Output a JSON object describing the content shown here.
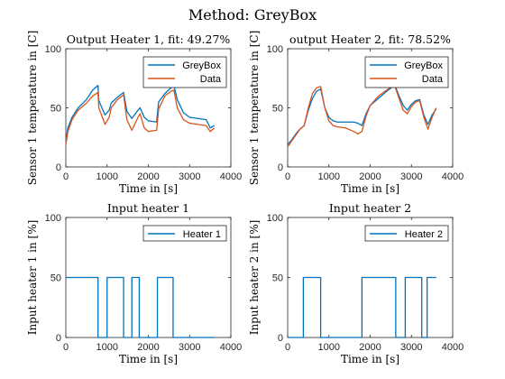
{
  "figure_title": "Method: GreyBox",
  "colors": {
    "greybox": "#0072BD",
    "data": "#D95319",
    "heater": "#0072BD",
    "axis": "#262626"
  },
  "chart_data": [
    {
      "type": "line",
      "title": "Output Heater 1, fit: 49.27%",
      "xlabel": "Time in [s]",
      "ylabel": "Sensor 1 temperature in [C]",
      "xlim": [
        0,
        4000
      ],
      "ylim": [
        0,
        100
      ],
      "xticks": [
        "0",
        "1000",
        "2000",
        "3000",
        "4000"
      ],
      "yticks": [
        "0",
        "50",
        "100"
      ],
      "legend_position": "top-right",
      "series": [
        {
          "name": "GreyBox",
          "color": "#0072BD",
          "x": [
            0,
            50,
            150,
            300,
            500,
            650,
            780,
            800,
            950,
            1050,
            1100,
            1250,
            1400,
            1480,
            1600,
            1750,
            1800,
            1900,
            2000,
            2200,
            2250,
            2400,
            2550,
            2620,
            2700,
            2850,
            3000,
            3200,
            3400,
            3500,
            3600
          ],
          "y": [
            22,
            33,
            42,
            50,
            57,
            65,
            69,
            56,
            44,
            48,
            54,
            59,
            63,
            47,
            41,
            48,
            50,
            42,
            39,
            38,
            55,
            62,
            67,
            69,
            57,
            46,
            42,
            41,
            40,
            33,
            35
          ]
        },
        {
          "name": "Data",
          "color": "#D95319",
          "x": [
            0,
            50,
            150,
            300,
            500,
            650,
            780,
            800,
            950,
            1050,
            1100,
            1250,
            1400,
            1480,
            1600,
            1750,
            1800,
            1900,
            2000,
            2200,
            2250,
            2400,
            2550,
            2620,
            2700,
            2850,
            3000,
            3200,
            3400,
            3500,
            3600
          ],
          "y": [
            19,
            30,
            40,
            48,
            54,
            60,
            63,
            50,
            36,
            42,
            50,
            57,
            61,
            40,
            31,
            42,
            45,
            33,
            30,
            31,
            49,
            60,
            64,
            65,
            50,
            40,
            37,
            36,
            35,
            30,
            33
          ]
        }
      ]
    },
    {
      "type": "line",
      "title": "output Heater 2, fit: 78.52%",
      "xlabel": "Time in [s]",
      "ylabel": "Sensor 1 temperature in [C]",
      "xlim": [
        0,
        4000
      ],
      "ylim": [
        0,
        100
      ],
      "xticks": [
        "0",
        "1000",
        "2000",
        "3000",
        "4000"
      ],
      "yticks": [
        "0",
        "50",
        "100"
      ],
      "legend_position": "top-right",
      "series": [
        {
          "name": "GreyBox",
          "color": "#0072BD",
          "x": [
            0,
            100,
            200,
            300,
            400,
            500,
            600,
            700,
            800,
            900,
            1000,
            1100,
            1200,
            1400,
            1600,
            1700,
            1800,
            1900,
            2000,
            2200,
            2400,
            2550,
            2600,
            2700,
            2800,
            2900,
            3000,
            3100,
            3200,
            3300,
            3400,
            3500,
            3600
          ],
          "y": [
            19,
            23,
            28,
            32,
            35,
            48,
            58,
            64,
            66,
            50,
            42,
            39,
            38,
            38,
            38,
            37,
            35,
            45,
            52,
            58,
            64,
            68,
            69,
            60,
            52,
            48,
            53,
            56,
            57,
            44,
            36,
            44,
            49
          ]
        },
        {
          "name": "Data",
          "color": "#D95319",
          "x": [
            0,
            100,
            200,
            300,
            400,
            500,
            600,
            700,
            800,
            900,
            1000,
            1100,
            1200,
            1400,
            1600,
            1700,
            1800,
            1900,
            2000,
            2200,
            2400,
            2550,
            2600,
            2700,
            2800,
            2900,
            3000,
            3100,
            3200,
            3300,
            3400,
            3500,
            3600
          ],
          "y": [
            17,
            22,
            27,
            32,
            35,
            50,
            62,
            67,
            68,
            50,
            39,
            35,
            34,
            33,
            30,
            28,
            30,
            43,
            52,
            60,
            65,
            69,
            68,
            58,
            48,
            45,
            51,
            55,
            56,
            42,
            32,
            42,
            50
          ]
        }
      ]
    },
    {
      "type": "line",
      "title": "Input heater 1",
      "xlabel": "Time in [s]",
      "ylabel": "Input heater 1 in [%]",
      "xlim": [
        0,
        4000
      ],
      "ylim": [
        0,
        100
      ],
      "xticks": [
        "0",
        "1000",
        "2000",
        "3000",
        "4000"
      ],
      "yticks": [
        "0",
        "50",
        "100"
      ],
      "legend_position": "top-right",
      "series": [
        {
          "name": "Heater 1",
          "color": "#0072BD",
          "x": [
            0,
            780,
            780,
            1000,
            1000,
            1400,
            1400,
            1600,
            1600,
            1780,
            1780,
            2220,
            2220,
            2600,
            2600,
            3600
          ],
          "y": [
            50,
            50,
            0,
            0,
            50,
            50,
            0,
            0,
            50,
            50,
            0,
            0,
            50,
            50,
            0,
            0
          ]
        }
      ]
    },
    {
      "type": "line",
      "title": "Input heater 2",
      "xlabel": "Time in [s]",
      "ylabel": "Input heater 2 in [%]",
      "xlim": [
        0,
        4000
      ],
      "ylim": [
        0,
        100
      ],
      "xticks": [
        "0",
        "1000",
        "2000",
        "3000",
        "4000"
      ],
      "yticks": [
        "0",
        "50",
        "100"
      ],
      "legend_position": "top-right",
      "series": [
        {
          "name": "Heater 2",
          "color": "#0072BD",
          "x": [
            0,
            380,
            380,
            800,
            800,
            1800,
            1800,
            2620,
            2620,
            2850,
            2850,
            3250,
            3250,
            3380,
            3380,
            3450,
            3450,
            3600
          ],
          "y": [
            0,
            0,
            50,
            50,
            0,
            0,
            50,
            50,
            0,
            0,
            50,
            50,
            0,
            0,
            50,
            50,
            50,
            50
          ]
        }
      ]
    }
  ]
}
